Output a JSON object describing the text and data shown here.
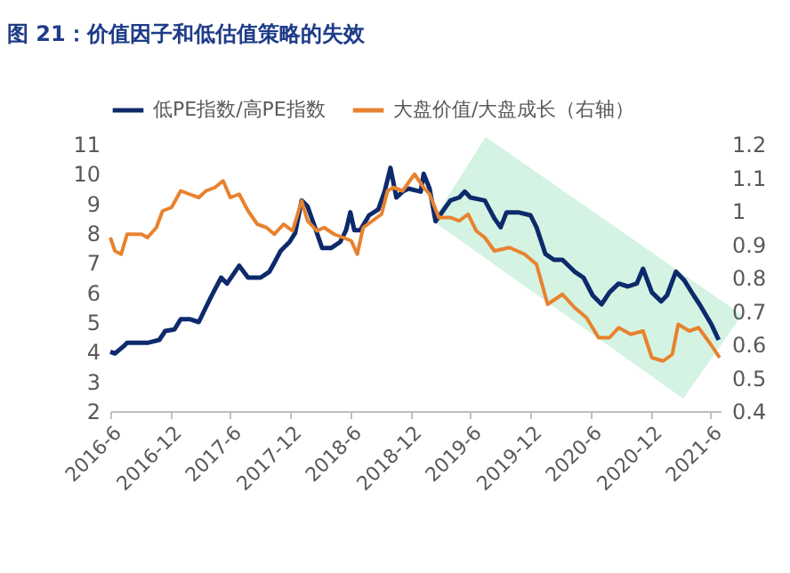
{
  "chart_data": {
    "type": "line",
    "title": "图 21：价值因子和低估值策略的失效",
    "legend": "top",
    "xlim": [
      "2016-06",
      "2021-07"
    ],
    "xticks": [
      {
        "value": "2016-06",
        "label": "2016-6"
      },
      {
        "value": "2016-12",
        "label": "2016-12"
      },
      {
        "value": "2017-06",
        "label": "2017-6"
      },
      {
        "value": "2017-12",
        "label": "2017-12"
      },
      {
        "value": "2018-06",
        "label": "2018-6"
      },
      {
        "value": "2018-12",
        "label": "2018-12"
      },
      {
        "value": "2019-06",
        "label": "2019-6"
      },
      {
        "value": "2019-12",
        "label": "2019-12"
      },
      {
        "value": "2020-06",
        "label": "2020-6"
      },
      {
        "value": "2020-12",
        "label": "2020-12"
      },
      {
        "value": "2021-06",
        "label": "2021-6"
      }
    ],
    "ylim": [
      2,
      11
    ],
    "yticks": [
      2,
      3,
      4,
      5,
      6,
      7,
      8,
      9,
      10,
      11
    ],
    "y2lim": [
      0.4,
      1.2
    ],
    "y2ticks": [
      0.4,
      0.5,
      0.6,
      0.7,
      0.8,
      0.9,
      1,
      1.1,
      1.2
    ],
    "series": [
      {
        "name": "低PE指数/高PE指数",
        "color": "#0d2a6b",
        "x": [
          "2016-06-01",
          "2016-06-15",
          "2016-07-13",
          "2016-07-22",
          "2016-09-22",
          "2016-10-28",
          "2016-11-15",
          "2016-12-13",
          "2017-01-01",
          "2017-01-28",
          "2017-02-25",
          "2017-03-10",
          "2017-04-01",
          "2017-04-15",
          "2017-05-04",
          "2017-05-22",
          "2017-06-28",
          "2017-07-25",
          "2017-09-01",
          "2017-09-28",
          "2017-10-13",
          "2017-11-01",
          "2017-11-28",
          "2017-12-15",
          "2018-01-04",
          "2018-01-22",
          "2018-02-10",
          "2018-03-07",
          "2018-04-04",
          "2018-05-01",
          "2018-05-19",
          "2018-06-01",
          "2018-06-13",
          "2018-07-01",
          "2018-07-28",
          "2018-08-25",
          "2018-09-13",
          "2018-10-01",
          "2018-10-19",
          "2018-11-07",
          "2018-11-25",
          "2019-01-01",
          "2019-01-10",
          "2019-01-28",
          "2019-02-15",
          "2019-03-13",
          "2019-04-01",
          "2019-04-28",
          "2019-05-15",
          "2019-06-01",
          "2019-07-15",
          "2019-08-13",
          "2019-09-01",
          "2019-09-19",
          "2019-10-25",
          "2019-12-01",
          "2019-12-19",
          "2020-01-15",
          "2020-02-10",
          "2020-03-07",
          "2020-04-13",
          "2020-05-10",
          "2020-06-07",
          "2020-07-04",
          "2020-07-28",
          "2020-08-25",
          "2020-09-22",
          "2020-10-19",
          "2020-11-07",
          "2020-12-04",
          "2021-01-01",
          "2021-01-19",
          "2021-02-15",
          "2021-03-13",
          "2021-04-10",
          "2021-04-28",
          "2021-06-04",
          "2021-06-25"
        ],
        "values": [
          4.0,
          3.94,
          4.2,
          4.3,
          4.3,
          4.4,
          4.7,
          4.75,
          5.1,
          5.1,
          5.0,
          5.3,
          5.8,
          6.1,
          6.5,
          6.3,
          6.9,
          6.5,
          6.5,
          6.7,
          7.0,
          7.4,
          7.7,
          8.0,
          9.1,
          8.9,
          8.3,
          7.5,
          7.5,
          7.7,
          8.1,
          8.7,
          8.1,
          8.1,
          8.6,
          8.8,
          9.4,
          10.2,
          9.2,
          9.4,
          9.5,
          9.4,
          10.0,
          9.5,
          8.4,
          8.8,
          9.1,
          9.2,
          9.4,
          9.2,
          9.1,
          8.5,
          8.2,
          8.7,
          8.7,
          8.6,
          8.2,
          7.3,
          7.1,
          7.1,
          6.7,
          6.5,
          5.9,
          5.6,
          6.0,
          6.3,
          6.2,
          6.3,
          6.8,
          6.0,
          5.7,
          5.9,
          6.7,
          6.4,
          5.9,
          5.6,
          4.9,
          4.4
        ]
      },
      {
        "name": "大盘价值/大盘成长（右轴）",
        "color": "#e8822e",
        "axis": "y2",
        "x": [
          "2016-06-01",
          "2016-06-15",
          "2016-07-04",
          "2016-07-22",
          "2016-09-04",
          "2016-09-22",
          "2016-10-19",
          "2016-11-07",
          "2016-12-04",
          "2017-01-01",
          "2017-01-28",
          "2017-02-25",
          "2017-03-19",
          "2017-04-15",
          "2017-05-10",
          "2017-06-01",
          "2017-06-28",
          "2017-07-25",
          "2017-08-22",
          "2017-09-19",
          "2017-10-13",
          "2017-10-22",
          "2017-11-10",
          "2017-12-07",
          "2018-01-04",
          "2018-01-22",
          "2018-02-19",
          "2018-03-13",
          "2018-04-13",
          "2018-05-10",
          "2018-06-04",
          "2018-06-22",
          "2018-07-10",
          "2018-08-07",
          "2018-09-04",
          "2018-09-22",
          "2018-10-10",
          "2018-11-07",
          "2018-12-13",
          "2019-01-10",
          "2019-01-28",
          "2019-02-25",
          "2019-04-01",
          "2019-04-28",
          "2019-05-25",
          "2019-06-19",
          "2019-07-15",
          "2019-08-13",
          "2019-09-28",
          "2019-11-13",
          "2019-12-19",
          "2020-01-22",
          "2020-03-07",
          "2020-04-13",
          "2020-05-19",
          "2020-06-25",
          "2020-07-28",
          "2020-08-25",
          "2020-10-01",
          "2020-11-07",
          "2020-12-04",
          "2021-01-07",
          "2021-02-04",
          "2021-02-22",
          "2021-03-28",
          "2021-04-25",
          "2021-06-01",
          "2021-06-28"
        ],
        "values": [
          0.92,
          0.88,
          0.87,
          0.93,
          0.93,
          0.92,
          0.95,
          1.0,
          1.01,
          1.06,
          1.05,
          1.04,
          1.06,
          1.07,
          1.09,
          1.04,
          1.05,
          1.0,
          0.96,
          0.95,
          0.93,
          0.94,
          0.96,
          0.94,
          1.03,
          0.97,
          0.94,
          0.95,
          0.93,
          0.92,
          0.91,
          0.87,
          0.95,
          0.97,
          0.99,
          1.06,
          1.07,
          1.06,
          1.11,
          1.07,
          1.05,
          0.98,
          0.98,
          0.97,
          0.99,
          0.94,
          0.92,
          0.88,
          0.89,
          0.87,
          0.84,
          0.72,
          0.75,
          0.71,
          0.68,
          0.62,
          0.62,
          0.65,
          0.63,
          0.64,
          0.56,
          0.55,
          0.57,
          0.66,
          0.64,
          0.65,
          0.6,
          0.56
        ]
      }
    ]
  }
}
